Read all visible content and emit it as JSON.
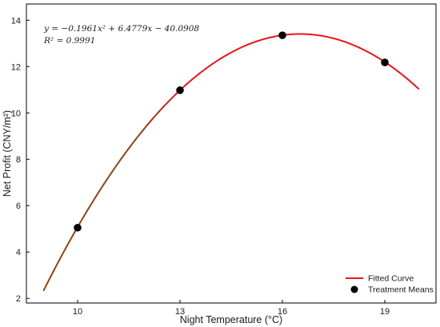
{
  "chart_data": {
    "type": "line",
    "xlabel": "Night Temperature (°C)",
    "ylabel": "Net Profit (CNY/m²)",
    "xlim": [
      8.5,
      20.5
    ],
    "ylim": [
      1.8,
      14.7
    ],
    "xticks": [
      10,
      13,
      16,
      19
    ],
    "yticks": [
      2,
      4,
      6,
      8,
      10,
      12,
      14
    ],
    "grid": false,
    "legend_position": "bottom-right",
    "fit": {
      "a": -0.1961,
      "b": 6.4779,
      "c": -40.0908,
      "x_range": [
        9,
        20
      ],
      "equation_text": "y = −0.1961x² + 6.4779x − 40.0908",
      "r2_text": "R² = 0.9991"
    },
    "series": [
      {
        "name": "Fitted Curve",
        "kind": "line",
        "color_start": "#8B4513",
        "color_end": "#E8141B"
      },
      {
        "name": "Treatment Means",
        "kind": "scatter",
        "color": "#000000",
        "x": [
          10,
          13,
          16,
          19
        ],
        "y": [
          5.05,
          10.98,
          13.35,
          12.18
        ]
      }
    ]
  }
}
